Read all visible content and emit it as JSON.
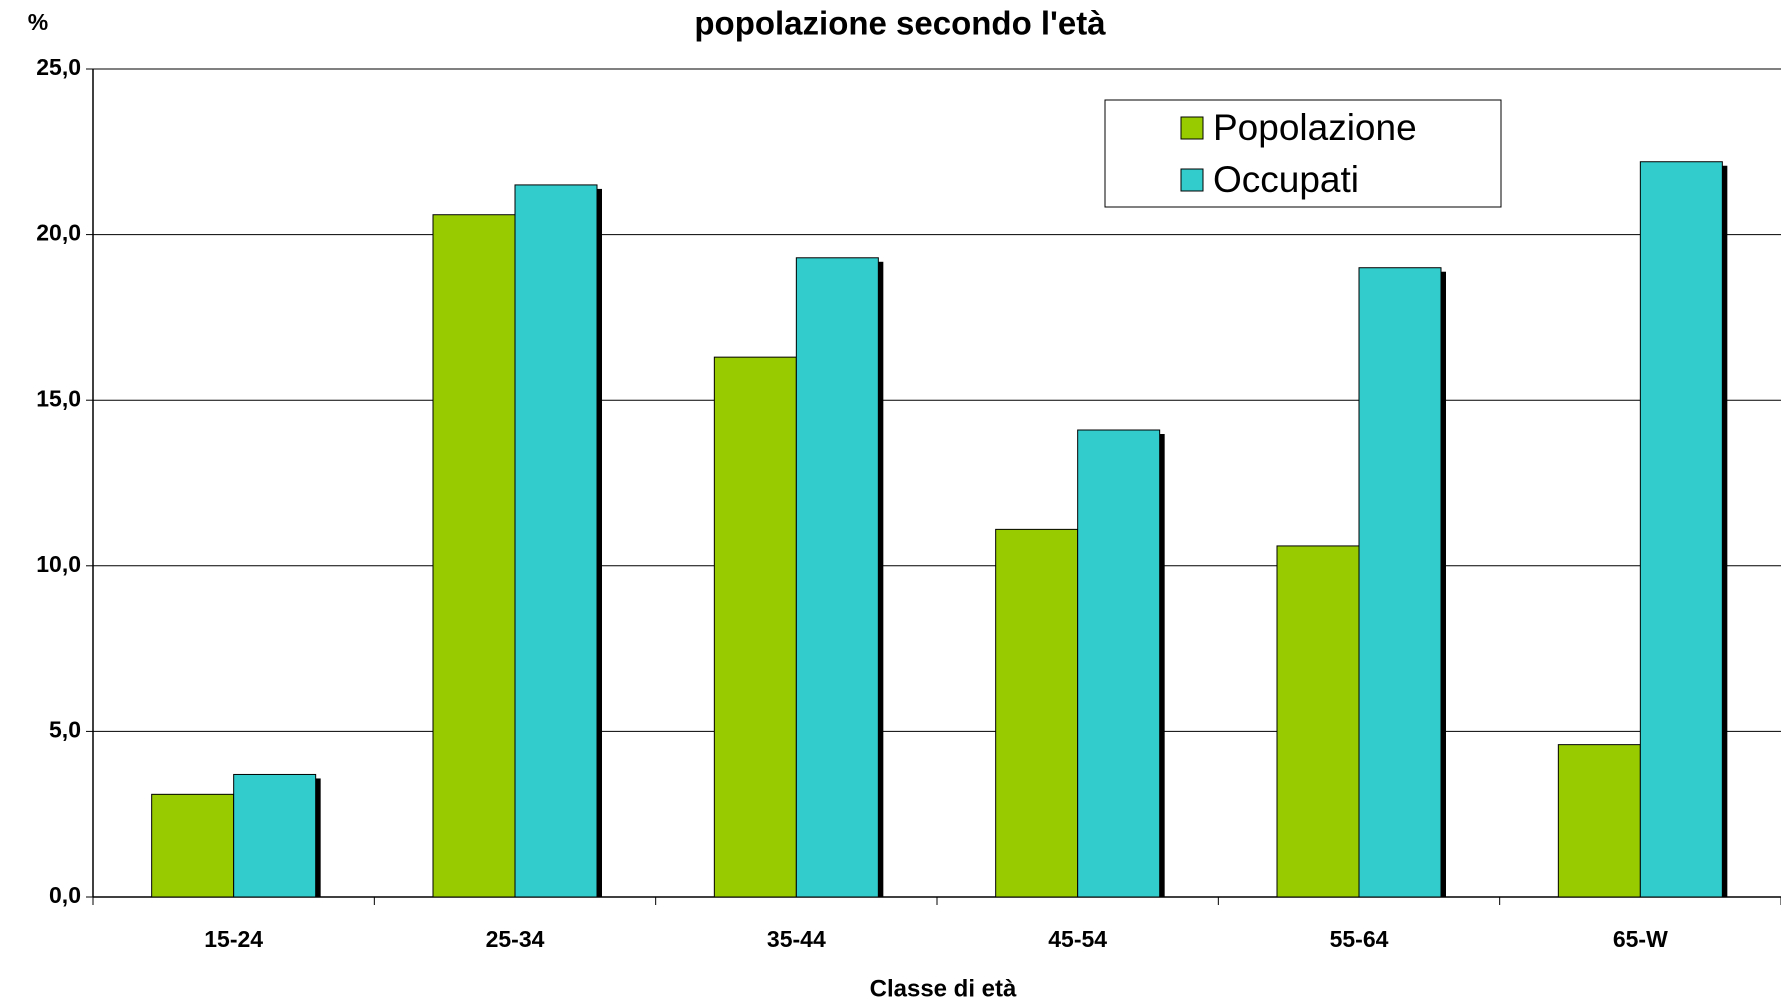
{
  "chart_data": {
    "type": "bar",
    "title": "popolazione secondo l'età",
    "y_label": "%",
    "x_label": "Classe di età",
    "categories": [
      "15-24",
      "25-34",
      "35-44",
      "45-54",
      "55-64",
      "65-W"
    ],
    "series": [
      {
        "name": "Popolazione",
        "color": "#99cc00",
        "values": [
          3.1,
          20.6,
          16.3,
          11.1,
          10.6,
          4.6
        ]
      },
      {
        "name": "Occupati",
        "color": "#33cccc",
        "values": [
          3.7,
          21.5,
          19.3,
          14.1,
          19.0,
          22.2
        ]
      }
    ],
    "ylim": [
      0,
      25
    ],
    "yticks": [
      {
        "value": 0,
        "label": "0,0"
      },
      {
        "value": 5,
        "label": "5,0"
      },
      {
        "value": 10,
        "label": "10,0"
      },
      {
        "value": 15,
        "label": "15,0"
      },
      {
        "value": 20,
        "label": "20,0"
      },
      {
        "value": 25,
        "label": "25,0"
      }
    ],
    "grid": true,
    "legend": "upper right"
  }
}
